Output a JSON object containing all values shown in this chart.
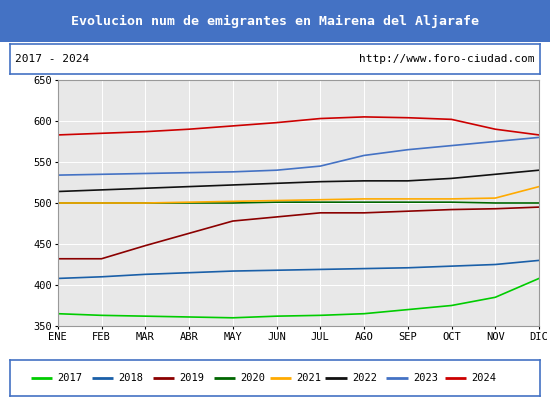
{
  "title": "Evolucion num de emigrantes en Mairena del Aljarafe",
  "title_color": "#ffffff",
  "title_bg_color": "#4472c4",
  "subtitle_left": "2017 - 2024",
  "subtitle_right": "http://www.foro-ciudad.com",
  "xlabel_months": [
    "ENE",
    "FEB",
    "MAR",
    "ABR",
    "MAY",
    "JUN",
    "JUL",
    "AGO",
    "SEP",
    "OCT",
    "NOV",
    "DIC"
  ],
  "ylim": [
    350,
    650
  ],
  "yticks": [
    350,
    400,
    450,
    500,
    550,
    600,
    650
  ],
  "series": {
    "2017": {
      "color": "#00cc00",
      "values": [
        365,
        363,
        362,
        361,
        360,
        362,
        363,
        365,
        370,
        375,
        385,
        408
      ]
    },
    "2018": {
      "color": "#1a5fa8",
      "values": [
        408,
        410,
        413,
        415,
        417,
        418,
        419,
        420,
        421,
        423,
        425,
        430
      ]
    },
    "2019": {
      "color": "#8b0000",
      "values": [
        432,
        432,
        448,
        463,
        478,
        483,
        488,
        488,
        490,
        492,
        493,
        495
      ]
    },
    "2020": {
      "color": "#006600",
      "values": [
        500,
        500,
        500,
        500,
        500,
        501,
        501,
        501,
        501,
        501,
        500,
        500
      ]
    },
    "2021": {
      "color": "#ffaa00",
      "values": [
        500,
        500,
        500,
        501,
        502,
        503,
        504,
        505,
        505,
        505,
        506,
        520
      ]
    },
    "2022": {
      "color": "#111111",
      "values": [
        514,
        516,
        518,
        520,
        522,
        524,
        526,
        527,
        527,
        530,
        535,
        540
      ]
    },
    "2023": {
      "color": "#4472c4",
      "values": [
        534,
        535,
        536,
        537,
        538,
        540,
        545,
        558,
        565,
        570,
        575,
        580
      ]
    },
    "2024": {
      "color": "#cc0000",
      "values": [
        583,
        585,
        587,
        590,
        594,
        598,
        603,
        605,
        604,
        602,
        590,
        583
      ]
    }
  },
  "bg_plot_color": "#e8e8e8",
  "bg_title_color": "#4472c4",
  "border_color": "#4472c4",
  "fig_width": 5.5,
  "fig_height": 4.0,
  "dpi": 100
}
